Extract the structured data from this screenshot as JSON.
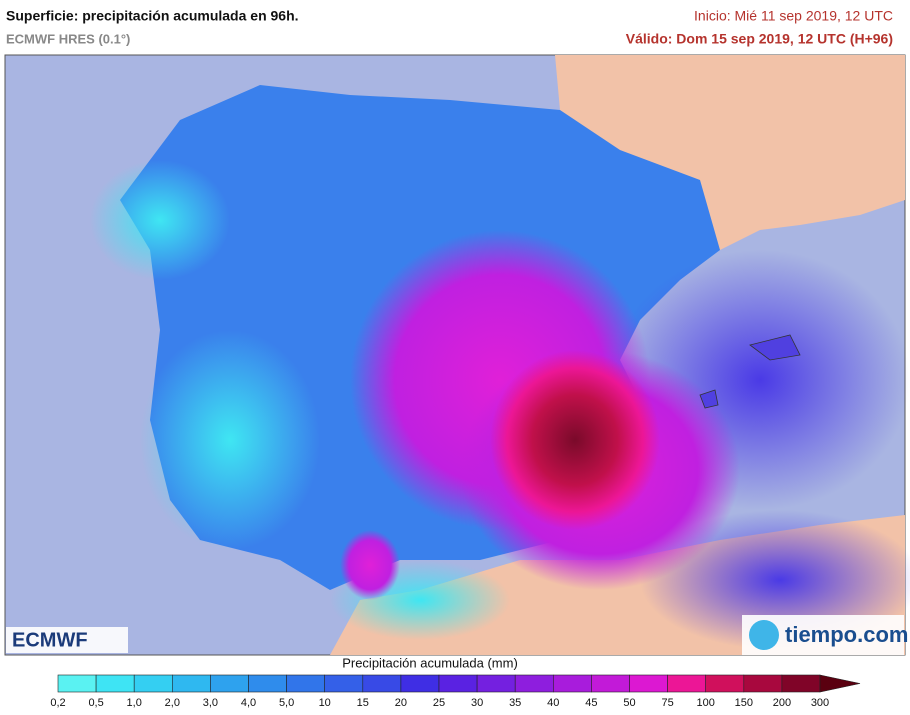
{
  "header": {
    "title": "Superficie: precipitación acumulada en 96h.",
    "model": "ECMWF HRES (0.1°)",
    "init": "Inicio: Mié 11 sep 2019, 12 UTC",
    "valid": "Válido: Dom 15 sep 2019, 12 UTC (H+96)"
  },
  "logos": {
    "left": "ECMWF",
    "right": "tiempo.com"
  },
  "legend": {
    "title": "Precipitación acumulada (mm)",
    "labels": [
      "0,2",
      "0,5",
      "1,0",
      "2,0",
      "3,0",
      "4,0",
      "5,0",
      "10",
      "15",
      "20",
      "25",
      "30",
      "35",
      "40",
      "45",
      "50",
      "75",
      "100",
      "150",
      "200",
      "300"
    ],
    "colors": [
      "#5af2f2",
      "#3ee4f4",
      "#34cff2",
      "#2fb8f0",
      "#2ea2ee",
      "#2f8cec",
      "#3175ea",
      "#3460e8",
      "#384ae6",
      "#3f2ee4",
      "#5a22e2",
      "#7420e0",
      "#8e1ede",
      "#a81cdc",
      "#c21ad8",
      "#dc18d2",
      "#ec1696",
      "#d0105c",
      "#a8083e",
      "#800428",
      "#5a0010"
    ]
  }
}
